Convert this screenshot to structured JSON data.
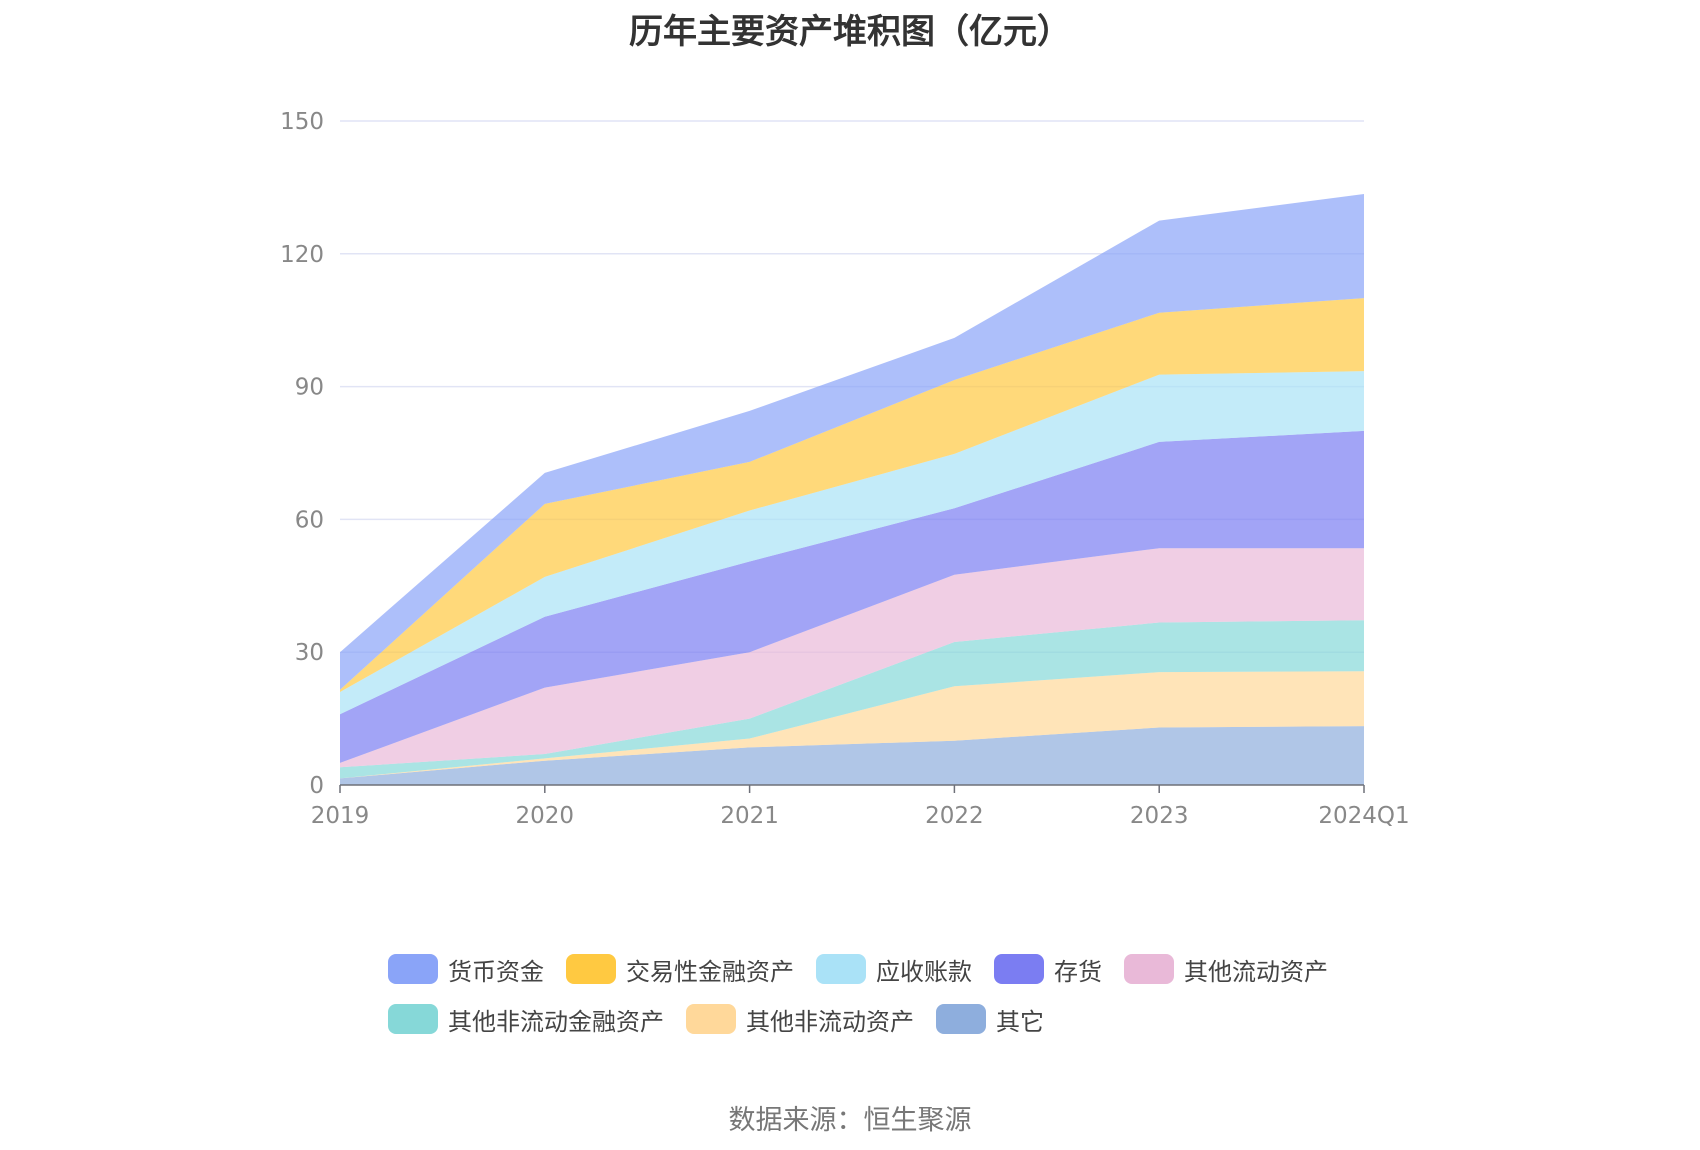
{
  "chart_data": {
    "type": "area",
    "stacked": true,
    "title": "历年主要资产堆积图（亿元）",
    "categories": [
      "2019",
      "2020",
      "2021",
      "2022",
      "2023",
      "2024Q1"
    ],
    "ylim": [
      0,
      150
    ],
    "yticks": [
      0,
      30,
      60,
      90,
      120,
      150
    ],
    "grid": true,
    "legend_position": "bottom",
    "series": [
      {
        "name": "其它",
        "color": "#8eaedd",
        "values": [
          1.5,
          5.5,
          8.5,
          10.0,
          13.0,
          13.3
        ]
      },
      {
        "name": "其他非流动资产",
        "color": "#ffd89a",
        "values": [
          0.0,
          0.5,
          2.0,
          12.3,
          12.5,
          12.4
        ]
      },
      {
        "name": "其他非流动金融资产",
        "color": "#86d8d8",
        "values": [
          2.5,
          1.0,
          4.5,
          10.0,
          11.2,
          11.5
        ]
      },
      {
        "name": "其他流动资产",
        "color": "#e9b9d8",
        "values": [
          1.0,
          15.0,
          15.0,
          15.2,
          16.8,
          16.3
        ]
      },
      {
        "name": "存货",
        "color": "#7b7df2",
        "values": [
          11.0,
          16.0,
          20.5,
          15.0,
          24.0,
          26.5
        ]
      },
      {
        "name": "应收账款",
        "color": "#aae2f7",
        "values": [
          5.0,
          9.0,
          11.5,
          12.3,
          15.2,
          13.5
        ]
      },
      {
        "name": "交易性金融资产",
        "color": "#ffc941",
        "values": [
          0.5,
          16.5,
          11.0,
          16.7,
          14.0,
          16.5
        ]
      },
      {
        "name": "货币资金",
        "color": "#8aa4f8",
        "values": [
          8.5,
          7.0,
          11.5,
          9.5,
          20.8,
          23.5
        ]
      }
    ],
    "legend": [
      [
        "货币资金",
        "交易性金融资产",
        "应收账款",
        "存货",
        "其他流动资产"
      ],
      [
        "其他非流动金融资产",
        "其他非流动资产",
        "其它"
      ]
    ],
    "source": "数据来源：恒生聚源"
  }
}
